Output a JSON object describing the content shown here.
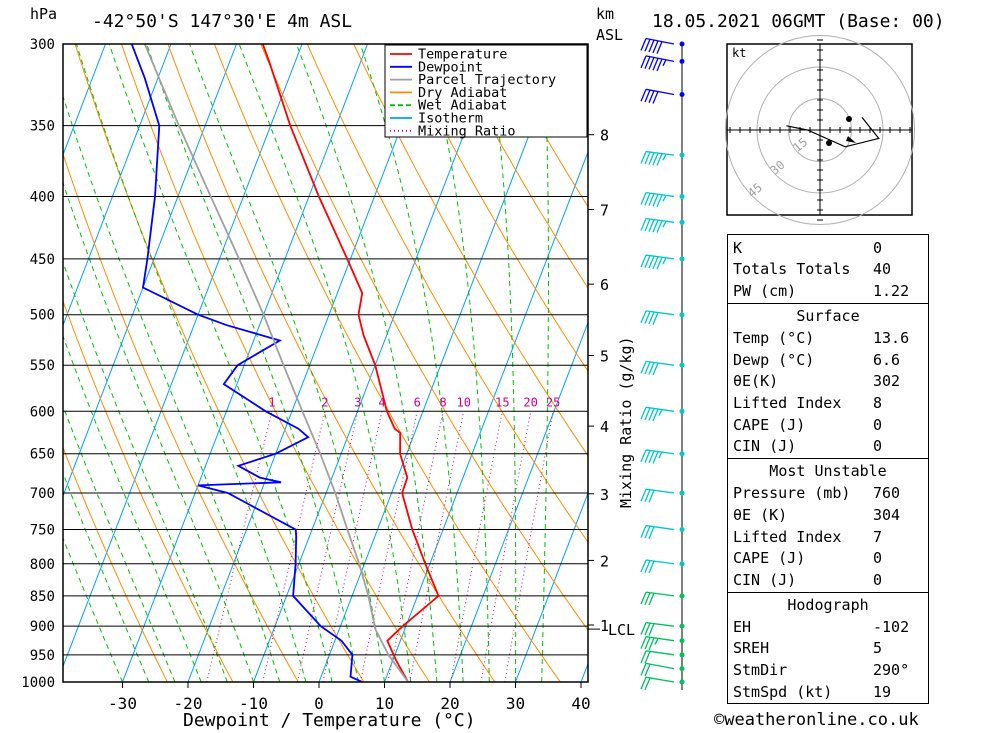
{
  "header": {
    "hpa_label": "hPa",
    "location": "-42°50'S 147°30'E 4m ASL",
    "km_label": "km",
    "asl_label": "ASL",
    "datetime": "18.05.2021 06GMT (Base: 00)"
  },
  "legend": [
    {
      "label": "Temperature",
      "color": "#ff0000",
      "style": "solid"
    },
    {
      "label": "Dewpoint",
      "color": "#0000ff",
      "style": "solid"
    },
    {
      "label": "Parcel Trajectory",
      "color": "#a0a0a0",
      "style": "solid"
    },
    {
      "label": "Dry Adiabat",
      "color": "#ff8c00",
      "style": "solid"
    },
    {
      "label": "Wet Adiabat",
      "color": "#00c000",
      "style": "dashed"
    },
    {
      "label": "Isotherm",
      "color": "#00a0ff",
      "style": "solid"
    },
    {
      "label": "Mixing Ratio",
      "color": "#d0008c",
      "style": "dotted"
    }
  ],
  "chart_data": {
    "type": "line",
    "xlabel": "Dewpoint / Temperature (°C)",
    "right_axis_label": "Mixing Ratio (g/kg)",
    "pressure_levels": [
      300,
      350,
      400,
      450,
      500,
      550,
      600,
      650,
      700,
      750,
      800,
      850,
      900,
      950,
      1000
    ],
    "x_ticks": [
      -30,
      -20,
      -10,
      0,
      10,
      20,
      30,
      40
    ],
    "xlim": [
      -40,
      40
    ],
    "ylim_hpa": [
      1000,
      300
    ],
    "km_ticks": [
      {
        "km": "8",
        "p": 356
      },
      {
        "km": "7",
        "p": 410
      },
      {
        "km": "6",
        "p": 472
      },
      {
        "km": "5",
        "p": 540
      },
      {
        "km": "4",
        "p": 617
      },
      {
        "km": "3",
        "p": 701
      },
      {
        "km": "2",
        "p": 795
      },
      {
        "km": "1",
        "p": 898
      }
    ],
    "lcl_label": "LCL",
    "lcl_p": 905,
    "mixing_ratio_labels": [
      "1",
      "2",
      "3",
      "4",
      "6",
      "8",
      "10",
      "15",
      "20",
      "25"
    ],
    "mixing_ratio_values": [
      1,
      2,
      3,
      4,
      6,
      8,
      10,
      15,
      20,
      25
    ],
    "series": [
      {
        "name": "Temperature",
        "points": [
          [
            1000,
            13.6
          ],
          [
            960,
            10.5
          ],
          [
            925,
            8.0
          ],
          [
            900,
            9.5
          ],
          [
            850,
            13.2
          ],
          [
            800,
            9.3
          ],
          [
            750,
            5.3
          ],
          [
            700,
            1.6
          ],
          [
            680,
            1.5
          ],
          [
            650,
            -1.0
          ],
          [
            625,
            -2.2
          ],
          [
            620,
            -3.3
          ],
          [
            600,
            -5.5
          ],
          [
            550,
            -10.0
          ],
          [
            520,
            -13.5
          ],
          [
            500,
            -15.5
          ],
          [
            480,
            -16.2
          ],
          [
            450,
            -20.5
          ],
          [
            400,
            -28.5
          ],
          [
            350,
            -37.0
          ],
          [
            310,
            -44.0
          ],
          [
            300,
            -46.0
          ]
        ]
      },
      {
        "name": "Dewpoint",
        "points": [
          [
            1000,
            6.6
          ],
          [
            990,
            4.5
          ],
          [
            950,
            3.5
          ],
          [
            925,
            1.0
          ],
          [
            900,
            -3.0
          ],
          [
            850,
            -9.0
          ],
          [
            800,
            -10.5
          ],
          [
            760,
            -12.0
          ],
          [
            750,
            -12.5
          ],
          [
            700,
            -25.0
          ],
          [
            690,
            -30.0
          ],
          [
            686,
            -17.5
          ],
          [
            680,
            -21.0
          ],
          [
            665,
            -25.0
          ],
          [
            650,
            -20.0
          ],
          [
            630,
            -16.0
          ],
          [
            620,
            -18.0
          ],
          [
            600,
            -24.0
          ],
          [
            570,
            -32.0
          ],
          [
            550,
            -31.0
          ],
          [
            525,
            -26.0
          ],
          [
            510,
            -35.0
          ],
          [
            500,
            -40.0
          ],
          [
            475,
            -50.0
          ],
          [
            450,
            -51.0
          ],
          [
            400,
            -53.5
          ],
          [
            350,
            -57.0
          ],
          [
            320,
            -62.0
          ],
          [
            300,
            -66.0
          ]
        ]
      },
      {
        "name": "Parcel Trajectory",
        "points": [
          [
            1000,
            13.6
          ],
          [
            950,
            9.0
          ],
          [
            905,
            5.5
          ],
          [
            850,
            2.5
          ],
          [
            800,
            -0.8
          ],
          [
            750,
            -4.6
          ],
          [
            700,
            -8.6
          ],
          [
            650,
            -13.2
          ],
          [
            600,
            -18.4
          ],
          [
            550,
            -24.0
          ],
          [
            500,
            -30.0
          ],
          [
            450,
            -37.0
          ],
          [
            400,
            -45.0
          ],
          [
            350,
            -54.0
          ],
          [
            300,
            -64.0
          ]
        ]
      }
    ],
    "wind_barbs": [
      {
        "p": 1000,
        "dir": 290,
        "kt": 20
      },
      {
        "p": 975,
        "dir": 300,
        "kt": 20
      },
      {
        "p": 950,
        "dir": 270,
        "kt": 20
      },
      {
        "p": 925,
        "dir": 270,
        "kt": 25
      },
      {
        "p": 900,
        "dir": 260,
        "kt": 30
      },
      {
        "p": 850,
        "dir": 265,
        "kt": 30
      },
      {
        "p": 800,
        "dir": 265,
        "kt": 30
      },
      {
        "p": 750,
        "dir": 270,
        "kt": 30
      },
      {
        "p": 700,
        "dir": 265,
        "kt": 30
      },
      {
        "p": 650,
        "dir": 265,
        "kt": 35
      },
      {
        "p": 600,
        "dir": 270,
        "kt": 35
      },
      {
        "p": 550,
        "dir": 265,
        "kt": 40
      },
      {
        "p": 500,
        "dir": 265,
        "kt": 40
      },
      {
        "p": 450,
        "dir": 265,
        "kt": 45
      },
      {
        "p": 420,
        "dir": 265,
        "kt": 45
      },
      {
        "p": 400,
        "dir": 265,
        "kt": 45
      },
      {
        "p": 370,
        "dir": 260,
        "kt": 45
      },
      {
        "p": 330,
        "dir": 300,
        "kt": 40
      },
      {
        "p": 310,
        "dir": 310,
        "kt": 45
      },
      {
        "p": 300,
        "dir": 310,
        "kt": 50
      }
    ],
    "hodograph": {
      "unit_label": "kt",
      "ring_labels": [
        "15",
        "30",
        "45"
      ],
      "points": [
        [
          10,
          3
        ],
        [
          14,
          -2
        ],
        [
          6,
          -4
        ],
        [
          -3,
          0
        ],
        [
          -8,
          1
        ]
      ]
    }
  },
  "stats_table": {
    "general": [
      {
        "k": "K",
        "v": "0"
      },
      {
        "k": "Totals Totals",
        "v": "40"
      },
      {
        "k": "PW (cm)",
        "v": "1.22"
      }
    ],
    "surface": {
      "title": "Surface",
      "rows": [
        {
          "k": "Temp (°C)",
          "v": "13.6"
        },
        {
          "k": "Dewp (°C)",
          "v": "6.6"
        },
        {
          "k": "θE(K)",
          "v": "302"
        },
        {
          "k": "Lifted Index",
          "v": "8"
        },
        {
          "k": "CAPE (J)",
          "v": "0"
        },
        {
          "k": "CIN (J)",
          "v": "0"
        }
      ]
    },
    "most_unstable": {
      "title": "Most Unstable",
      "rows": [
        {
          "k": "Pressure (mb)",
          "v": "760"
        },
        {
          "k": "θE (K)",
          "v": "304"
        },
        {
          "k": "Lifted Index",
          "v": "7"
        },
        {
          "k": "CAPE (J)",
          "v": "0"
        },
        {
          "k": "CIN (J)",
          "v": "0"
        }
      ]
    },
    "hodograph": {
      "title": "Hodograph",
      "rows": [
        {
          "k": "EH",
          "v": "-102"
        },
        {
          "k": "SREH",
          "v": "5"
        },
        {
          "k": "StmDir",
          "v": "290°"
        },
        {
          "k": "StmSpd (kt)",
          "v": "19"
        }
      ]
    }
  },
  "footer": "©weatheronline.co.uk"
}
